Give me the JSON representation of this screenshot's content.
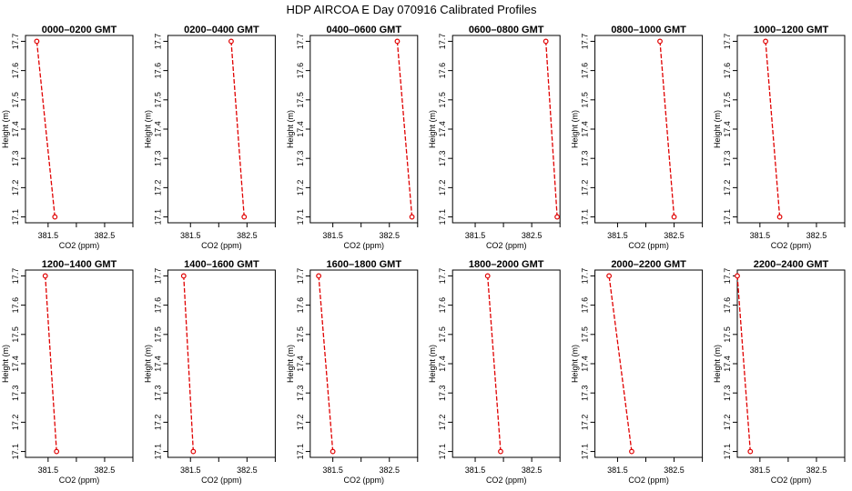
{
  "figure": {
    "title": "HDP  AIRCOA E  Day 070916  Calibrated Profiles"
  },
  "chart_data": [
    {
      "type": "line",
      "title": "0000–0200 GMT",
      "xlabel": "CO2 (ppm)",
      "ylabel": "Height (m)",
      "xlim": [
        381.1,
        383.0
      ],
      "ylim": [
        17.08,
        17.72
      ],
      "xticks": [
        381.5,
        382.5
      ],
      "yticks": [
        17.1,
        17.2,
        17.3,
        17.4,
        17.5,
        17.6,
        17.7
      ],
      "series": [
        {
          "x": [
            381.62,
            381.3
          ],
          "y": [
            17.1,
            17.7
          ]
        }
      ]
    },
    {
      "type": "line",
      "title": "0200–0400 GMT",
      "xlabel": "CO2 (ppm)",
      "ylabel": "Height (m)",
      "xlim": [
        381.1,
        383.0
      ],
      "ylim": [
        17.08,
        17.72
      ],
      "xticks": [
        381.5,
        382.5
      ],
      "yticks": [
        17.1,
        17.2,
        17.3,
        17.4,
        17.5,
        17.6,
        17.7
      ],
      "series": [
        {
          "x": [
            382.45,
            382.22
          ],
          "y": [
            17.1,
            17.7
          ]
        }
      ]
    },
    {
      "type": "line",
      "title": "0400–0600 GMT",
      "xlabel": "CO2 (ppm)",
      "ylabel": "Height (m)",
      "xlim": [
        381.1,
        383.0
      ],
      "ylim": [
        17.08,
        17.72
      ],
      "xticks": [
        381.5,
        382.5
      ],
      "yticks": [
        17.1,
        17.2,
        17.3,
        17.4,
        17.5,
        17.6,
        17.7
      ],
      "series": [
        {
          "x": [
            382.9,
            382.64
          ],
          "y": [
            17.1,
            17.7
          ]
        }
      ]
    },
    {
      "type": "line",
      "title": "0600–0800 GMT",
      "xlabel": "CO2 (ppm)",
      "ylabel": "Height (m)",
      "xlim": [
        381.1,
        383.0
      ],
      "ylim": [
        17.08,
        17.72
      ],
      "xticks": [
        381.5,
        382.5
      ],
      "yticks": [
        17.1,
        17.2,
        17.3,
        17.4,
        17.5,
        17.6,
        17.7
      ],
      "series": [
        {
          "x": [
            382.95,
            382.75
          ],
          "y": [
            17.1,
            17.7
          ]
        }
      ]
    },
    {
      "type": "line",
      "title": "0800–1000 GMT",
      "xlabel": "CO2 (ppm)",
      "ylabel": "Height (m)",
      "xlim": [
        381.1,
        383.0
      ],
      "ylim": [
        17.08,
        17.72
      ],
      "xticks": [
        381.5,
        382.5
      ],
      "yticks": [
        17.1,
        17.2,
        17.3,
        17.4,
        17.5,
        17.6,
        17.7
      ],
      "series": [
        {
          "x": [
            382.5,
            382.25
          ],
          "y": [
            17.1,
            17.7
          ]
        }
      ]
    },
    {
      "type": "line",
      "title": "1000–1200 GMT",
      "xlabel": "CO2 (ppm)",
      "ylabel": "Height (m)",
      "xlim": [
        381.1,
        383.0
      ],
      "ylim": [
        17.08,
        17.72
      ],
      "xticks": [
        381.5,
        382.5
      ],
      "yticks": [
        17.1,
        17.2,
        17.3,
        17.4,
        17.5,
        17.6,
        17.7
      ],
      "series": [
        {
          "x": [
            381.85,
            381.6
          ],
          "y": [
            17.1,
            17.7
          ]
        }
      ]
    },
    {
      "type": "line",
      "title": "1200–1400 GMT",
      "xlabel": "CO2 (ppm)",
      "ylabel": "Height (m)",
      "xlim": [
        381.1,
        383.0
      ],
      "ylim": [
        17.08,
        17.72
      ],
      "xticks": [
        381.5,
        382.5
      ],
      "yticks": [
        17.1,
        17.2,
        17.3,
        17.4,
        17.5,
        17.6,
        17.7
      ],
      "series": [
        {
          "x": [
            381.65,
            381.45
          ],
          "y": [
            17.1,
            17.7
          ]
        }
      ]
    },
    {
      "type": "line",
      "title": "1400–1600 GMT",
      "xlabel": "CO2 (ppm)",
      "ylabel": "Height (m)",
      "xlim": [
        381.1,
        383.0
      ],
      "ylim": [
        17.08,
        17.72
      ],
      "xticks": [
        381.5,
        382.5
      ],
      "yticks": [
        17.1,
        17.2,
        17.3,
        17.4,
        17.5,
        17.6,
        17.7
      ],
      "series": [
        {
          "x": [
            381.55,
            381.38
          ],
          "y": [
            17.1,
            17.7
          ]
        }
      ]
    },
    {
      "type": "line",
      "title": "1600–1800 GMT",
      "xlabel": "CO2 (ppm)",
      "ylabel": "Height (m)",
      "xlim": [
        381.1,
        383.0
      ],
      "ylim": [
        17.08,
        17.72
      ],
      "xticks": [
        381.5,
        382.5
      ],
      "yticks": [
        17.1,
        17.2,
        17.3,
        17.4,
        17.5,
        17.6,
        17.7
      ],
      "series": [
        {
          "x": [
            381.5,
            381.25
          ],
          "y": [
            17.1,
            17.7
          ]
        }
      ]
    },
    {
      "type": "line",
      "title": "1800–2000 GMT",
      "xlabel": "CO2 (ppm)",
      "ylabel": "Height (m)",
      "xlim": [
        381.1,
        383.0
      ],
      "ylim": [
        17.08,
        17.72
      ],
      "xticks": [
        381.5,
        382.5
      ],
      "yticks": [
        17.1,
        17.2,
        17.3,
        17.4,
        17.5,
        17.6,
        17.7
      ],
      "series": [
        {
          "x": [
            381.95,
            381.72
          ],
          "y": [
            17.1,
            17.7
          ]
        }
      ]
    },
    {
      "type": "line",
      "title": "2000–2200 GMT",
      "xlabel": "CO2 (ppm)",
      "ylabel": "Height (m)",
      "xlim": [
        381.1,
        383.0
      ],
      "ylim": [
        17.08,
        17.72
      ],
      "xticks": [
        381.5,
        382.5
      ],
      "yticks": [
        17.1,
        17.2,
        17.3,
        17.4,
        17.5,
        17.6,
        17.7
      ],
      "series": [
        {
          "x": [
            381.75,
            381.35
          ],
          "y": [
            17.1,
            17.7
          ]
        }
      ]
    },
    {
      "type": "line",
      "title": "2200–2400 GMT",
      "xlabel": "CO2 (ppm)",
      "ylabel": "Height (m)",
      "xlim": [
        381.1,
        383.0
      ],
      "ylim": [
        17.08,
        17.72
      ],
      "xticks": [
        381.5,
        382.5
      ],
      "yticks": [
        17.1,
        17.2,
        17.3,
        17.4,
        17.5,
        17.6,
        17.7
      ],
      "series": [
        {
          "x": [
            381.33,
            381.1
          ],
          "y": [
            17.1,
            17.7
          ]
        }
      ]
    }
  ]
}
